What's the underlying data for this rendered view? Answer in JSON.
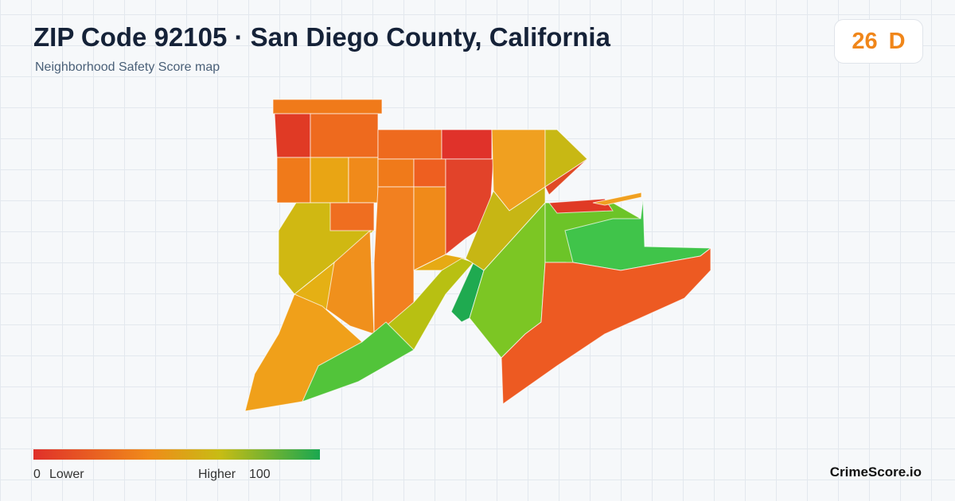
{
  "header": {
    "title": "ZIP Code 92105 · San Diego County, California",
    "subtitle": "Neighborhood Safety Score map"
  },
  "score": {
    "value": 26,
    "grade": "D"
  },
  "legend": {
    "min": 0,
    "min_label": "Lower",
    "max_label": "Higher",
    "max": 100
  },
  "brand": "CrimeScore.io"
}
